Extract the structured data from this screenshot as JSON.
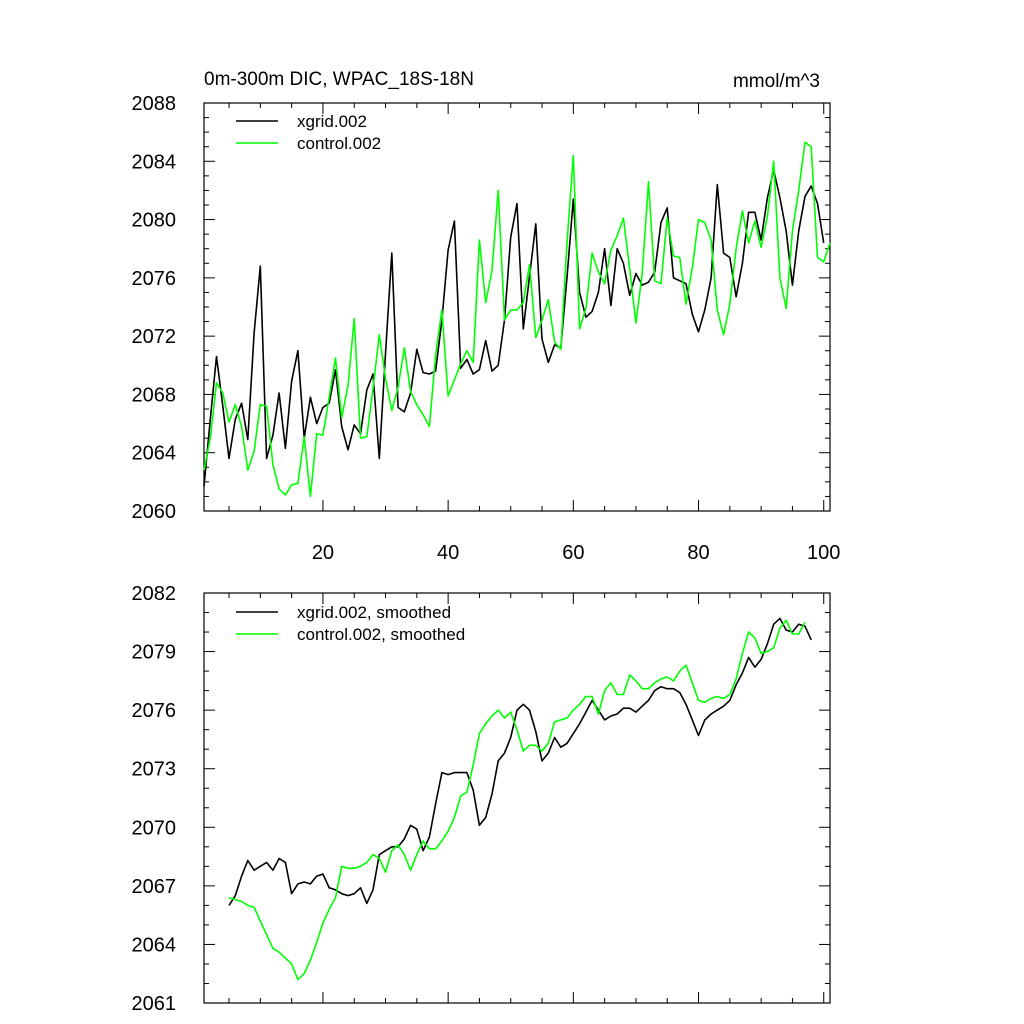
{
  "chart_data": [
    {
      "type": "line",
      "title": "0m-300m DIC, WPAC_18S-18N",
      "units": "mmol/m^3",
      "xlim": [
        1,
        101
      ],
      "ylim": [
        2060,
        2088
      ],
      "yticks": [
        2060,
        2064,
        2068,
        2072,
        2076,
        2080,
        2084,
        2088
      ],
      "xticks": [
        20,
        40,
        60,
        80,
        100
      ],
      "legend_position": "top-left",
      "series": [
        {
          "name": "xgrid.002",
          "color": "#000000",
          "x_start": 1,
          "values": [
            2061.7,
            2066.3,
            2070.6,
            2067.2,
            2063.6,
            2066.3,
            2067.4,
            2064.9,
            2072.2,
            2076.8,
            2063.6,
            2065.2,
            2068.1,
            2064.3,
            2068.9,
            2071.0,
            2065.0,
            2067.8,
            2066.0,
            2067.1,
            2067.4,
            2069.7,
            2065.8,
            2064.2,
            2065.9,
            2065.3,
            2068.3,
            2069.4,
            2063.6,
            2070.8,
            2077.7,
            2067.1,
            2066.8,
            2068.1,
            2071.1,
            2069.5,
            2069.4,
            2069.6,
            2073.1,
            2077.9,
            2079.9,
            2069.8,
            2070.4,
            2069.4,
            2069.7,
            2071.7,
            2069.6,
            2070.0,
            2073.1,
            2078.8,
            2081.1,
            2072.5,
            2076.1,
            2079.7,
            2071.8,
            2070.2,
            2071.4,
            2071.2,
            2076.1,
            2081.4,
            2075.0,
            2073.3,
            2073.7,
            2075.0,
            2078.0,
            2074.1,
            2078.0,
            2077.0,
            2074.8,
            2076.3,
            2075.5,
            2075.7,
            2076.4,
            2079.8,
            2080.8,
            2076.0,
            2075.8,
            2075.6,
            2073.5,
            2072.3,
            2073.8,
            2076.0,
            2082.4,
            2077.7,
            2077.4,
            2074.7,
            2077.0,
            2080.5,
            2080.5,
            2078.6,
            2081.5,
            2083.4,
            2081.5,
            2079.2,
            2075.5,
            2079.2,
            2081.6,
            2082.3,
            2081.1,
            2078.4
          ]
        },
        {
          "name": "control.002",
          "color": "#00ff00",
          "x_start": 1,
          "values": [
            2062.8,
            2065.0,
            2068.8,
            2068.1,
            2066.1,
            2067.3,
            2065.8,
            2062.8,
            2064.1,
            2067.3,
            2067.2,
            2063.2,
            2061.5,
            2061.1,
            2061.8,
            2061.9,
            2065.1,
            2061.0,
            2065.3,
            2065.2,
            2067.8,
            2070.5,
            2066.4,
            2068.6,
            2073.2,
            2065.0,
            2065.1,
            2068.4,
            2072.1,
            2069.1,
            2066.9,
            2068.5,
            2071.2,
            2068.2,
            2067.3,
            2066.6,
            2065.8,
            2070.7,
            2073.8,
            2067.9,
            2069.0,
            2070.1,
            2071.0,
            2070.2,
            2078.6,
            2074.3,
            2076.5,
            2082.0,
            2073.1,
            2073.8,
            2073.8,
            2074.3,
            2076.9,
            2071.9,
            2073.1,
            2074.5,
            2071.6,
            2071.1,
            2078.5,
            2084.4,
            2072.5,
            2073.9,
            2077.7,
            2076.4,
            2075.6,
            2077.9,
            2078.9,
            2080.1,
            2076.6,
            2072.9,
            2076.3,
            2082.6,
            2075.8,
            2075.6,
            2080.1,
            2077.5,
            2077.4,
            2074.2,
            2076.7,
            2080.0,
            2079.8,
            2078.6,
            2073.8,
            2072.1,
            2074.2,
            2078.0,
            2080.6,
            2078.4,
            2079.9,
            2078.1,
            2080.2,
            2084.0,
            2076.0,
            2073.9,
            2079.2,
            2082.0,
            2085.3,
            2085.0,
            2077.4,
            2077.1,
            2078.4
          ]
        }
      ]
    },
    {
      "type": "line",
      "title": "",
      "xlim": [
        1,
        101
      ],
      "ylim": [
        2061,
        2082
      ],
      "yticks": [
        2061,
        2064,
        2067,
        2070,
        2073,
        2076,
        2079,
        2082
      ],
      "xticks": [
        20,
        40,
        60,
        80,
        100
      ],
      "legend_position": "top-left",
      "series": [
        {
          "name": "xgrid.002, smoothed",
          "color": "#000000",
          "x_start": 5,
          "values": [
            2066.0,
            2066.5,
            2067.5,
            2068.3,
            2067.8,
            2068.0,
            2068.2,
            2067.8,
            2068.4,
            2068.2,
            2066.6,
            2067.1,
            2067.2,
            2067.1,
            2067.5,
            2067.6,
            2066.9,
            2066.8,
            2066.6,
            2066.5,
            2066.6,
            2066.9,
            2066.1,
            2066.8,
            2068.6,
            2068.8,
            2069.0,
            2069.0,
            2069.4,
            2070.1,
            2069.9,
            2068.8,
            2069.5,
            2071.2,
            2072.8,
            2072.7,
            2072.8,
            2072.8,
            2072.8,
            2071.9,
            2070.1,
            2070.5,
            2071.7,
            2073.4,
            2073.8,
            2074.6,
            2076.0,
            2076.3,
            2076.0,
            2074.9,
            2073.4,
            2073.8,
            2074.6,
            2074.1,
            2074.3,
            2074.8,
            2075.3,
            2075.9,
            2076.5,
            2076.0,
            2075.5,
            2075.7,
            2075.8,
            2076.1,
            2076.1,
            2075.9,
            2076.2,
            2076.5,
            2077.0,
            2077.2,
            2077.1,
            2077.1,
            2076.9,
            2076.3,
            2075.5,
            2074.7,
            2075.5,
            2075.8,
            2076.0,
            2076.2,
            2076.5,
            2077.3,
            2077.9,
            2078.7,
            2078.2,
            2078.6,
            2079.4,
            2080.4,
            2080.7,
            2080.1,
            2080.0,
            2080.4,
            2080.3,
            2079.6
          ]
        },
        {
          "name": "control.002, smoothed",
          "color": "#00ff00",
          "x_start": 5,
          "values": [
            2066.4,
            2066.3,
            2066.2,
            2066.0,
            2065.9,
            2065.2,
            2064.5,
            2063.8,
            2063.6,
            2063.3,
            2063.0,
            2062.2,
            2062.5,
            2063.2,
            2064.1,
            2065.1,
            2065.8,
            2066.4,
            2068.0,
            2067.9,
            2067.9,
            2068.0,
            2068.2,
            2068.6,
            2068.4,
            2067.7,
            2068.8,
            2069.1,
            2068.6,
            2067.8,
            2068.6,
            2069.3,
            2068.9,
            2068.9,
            2069.3,
            2069.8,
            2070.5,
            2071.6,
            2071.8,
            2073.2,
            2074.8,
            2075.3,
            2075.7,
            2076.0,
            2075.6,
            2075.9,
            2075.0,
            2073.9,
            2074.2,
            2074.2,
            2073.9,
            2074.3,
            2075.4,
            2075.5,
            2075.6,
            2076.0,
            2076.3,
            2076.7,
            2076.7,
            2075.8,
            2077.0,
            2077.4,
            2076.8,
            2076.8,
            2077.8,
            2077.5,
            2077.1,
            2077.1,
            2077.4,
            2077.6,
            2077.7,
            2077.5,
            2078.0,
            2078.3,
            2077.4,
            2076.5,
            2076.4,
            2076.6,
            2076.7,
            2076.6,
            2076.8,
            2077.6,
            2078.9,
            2080.0,
            2079.7,
            2078.9,
            2079.0,
            2079.2,
            2080.2,
            2080.6,
            2079.9,
            2079.9,
            2080.5
          ]
        }
      ]
    }
  ]
}
